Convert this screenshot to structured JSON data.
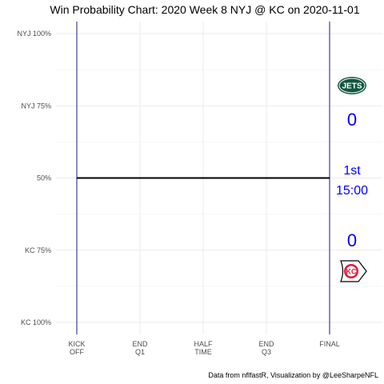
{
  "chart_data": {
    "type": "line",
    "title": "Win Probability Chart: 2020 Week 8 NYJ @ KC on 2020-11-01",
    "caption": "Data from nflfastR, Visualization by @LeeSharpeNFL",
    "xlabel": "",
    "ylabel": "",
    "x_ticks": [
      {
        "line1": "KICK",
        "line2": "OFF"
      },
      {
        "line1": "END",
        "line2": "Q1"
      },
      {
        "line1": "HALF",
        "line2": "TIME"
      },
      {
        "line1": "END",
        "line2": "Q3"
      },
      {
        "line1": "FINAL",
        "line2": ""
      }
    ],
    "xlim": [
      0,
      60
    ],
    "y_ticks": [
      {
        "label": "NYJ 100%",
        "value": 1.0
      },
      {
        "label": "NYJ 75%",
        "value": 0.75
      },
      {
        "label": "50%",
        "value": 0.5
      },
      {
        "label": "KC 75%",
        "value": 0.25
      },
      {
        "label": "KC 100%",
        "value": 0.0
      }
    ],
    "ylim": [
      0,
      1
    ],
    "grid": true,
    "series": [
      {
        "x": [
          0,
          60
        ],
        "y": [
          0.5,
          0.5
        ]
      }
    ],
    "home_team_line_color": "#191970",
    "top_team": {
      "abbr": "NYJ",
      "score": "0",
      "logo": "jets-logo",
      "logo_text": "JETS",
      "color": "#125740"
    },
    "bottom_team": {
      "abbr": "KC",
      "score": "0",
      "logo": "chiefs-logo",
      "logo_text": "KC",
      "color": "#E31837"
    },
    "game_state": {
      "quarter": "1st",
      "clock": "15:00"
    },
    "text_color": "#0000FF"
  }
}
